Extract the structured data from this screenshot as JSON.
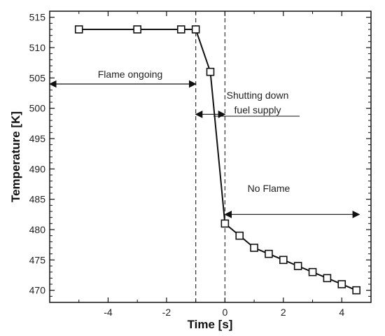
{
  "chart_data": {
    "type": "line",
    "xlabel": "Time [s]",
    "ylabel": "Temperature [K]",
    "xlim": [
      -6,
      5
    ],
    "ylim": [
      468,
      516
    ],
    "xticks": [
      -4,
      -2,
      0,
      2,
      4
    ],
    "yticks": [
      470,
      475,
      480,
      485,
      490,
      495,
      500,
      505,
      510,
      515
    ],
    "grid": false,
    "marker": "square",
    "series": [
      {
        "points": [
          [
            -5,
            513
          ],
          [
            -3,
            513
          ],
          [
            -1.5,
            513
          ],
          [
            -1,
            513
          ],
          [
            -0.5,
            506
          ],
          [
            0,
            481
          ],
          [
            0.5,
            479
          ],
          [
            1,
            477
          ],
          [
            1.5,
            476
          ],
          [
            2,
            475
          ],
          [
            2.5,
            474
          ],
          [
            3,
            473
          ],
          [
            3.5,
            472
          ],
          [
            4,
            471
          ],
          [
            4.5,
            470
          ]
        ]
      }
    ],
    "vlines": [
      -1,
      0
    ],
    "annotations": [
      {
        "text": "Flame ongoing",
        "lines": [
          "Flame ongoing"
        ]
      },
      {
        "text": "Shutting down fuel supply",
        "lines": [
          "Shutting down",
          "fuel supply"
        ]
      },
      {
        "text": "No Flame",
        "lines": [
          "No Flame"
        ]
      }
    ],
    "arrows": [
      {
        "from": [
          -6,
          504
        ],
        "to": [
          -1,
          504
        ]
      },
      {
        "from": [
          -1,
          499
        ],
        "to": [
          0,
          499
        ]
      },
      {
        "from": [
          0,
          482.5
        ],
        "to": [
          4.6,
          482.5
        ]
      }
    ]
  }
}
